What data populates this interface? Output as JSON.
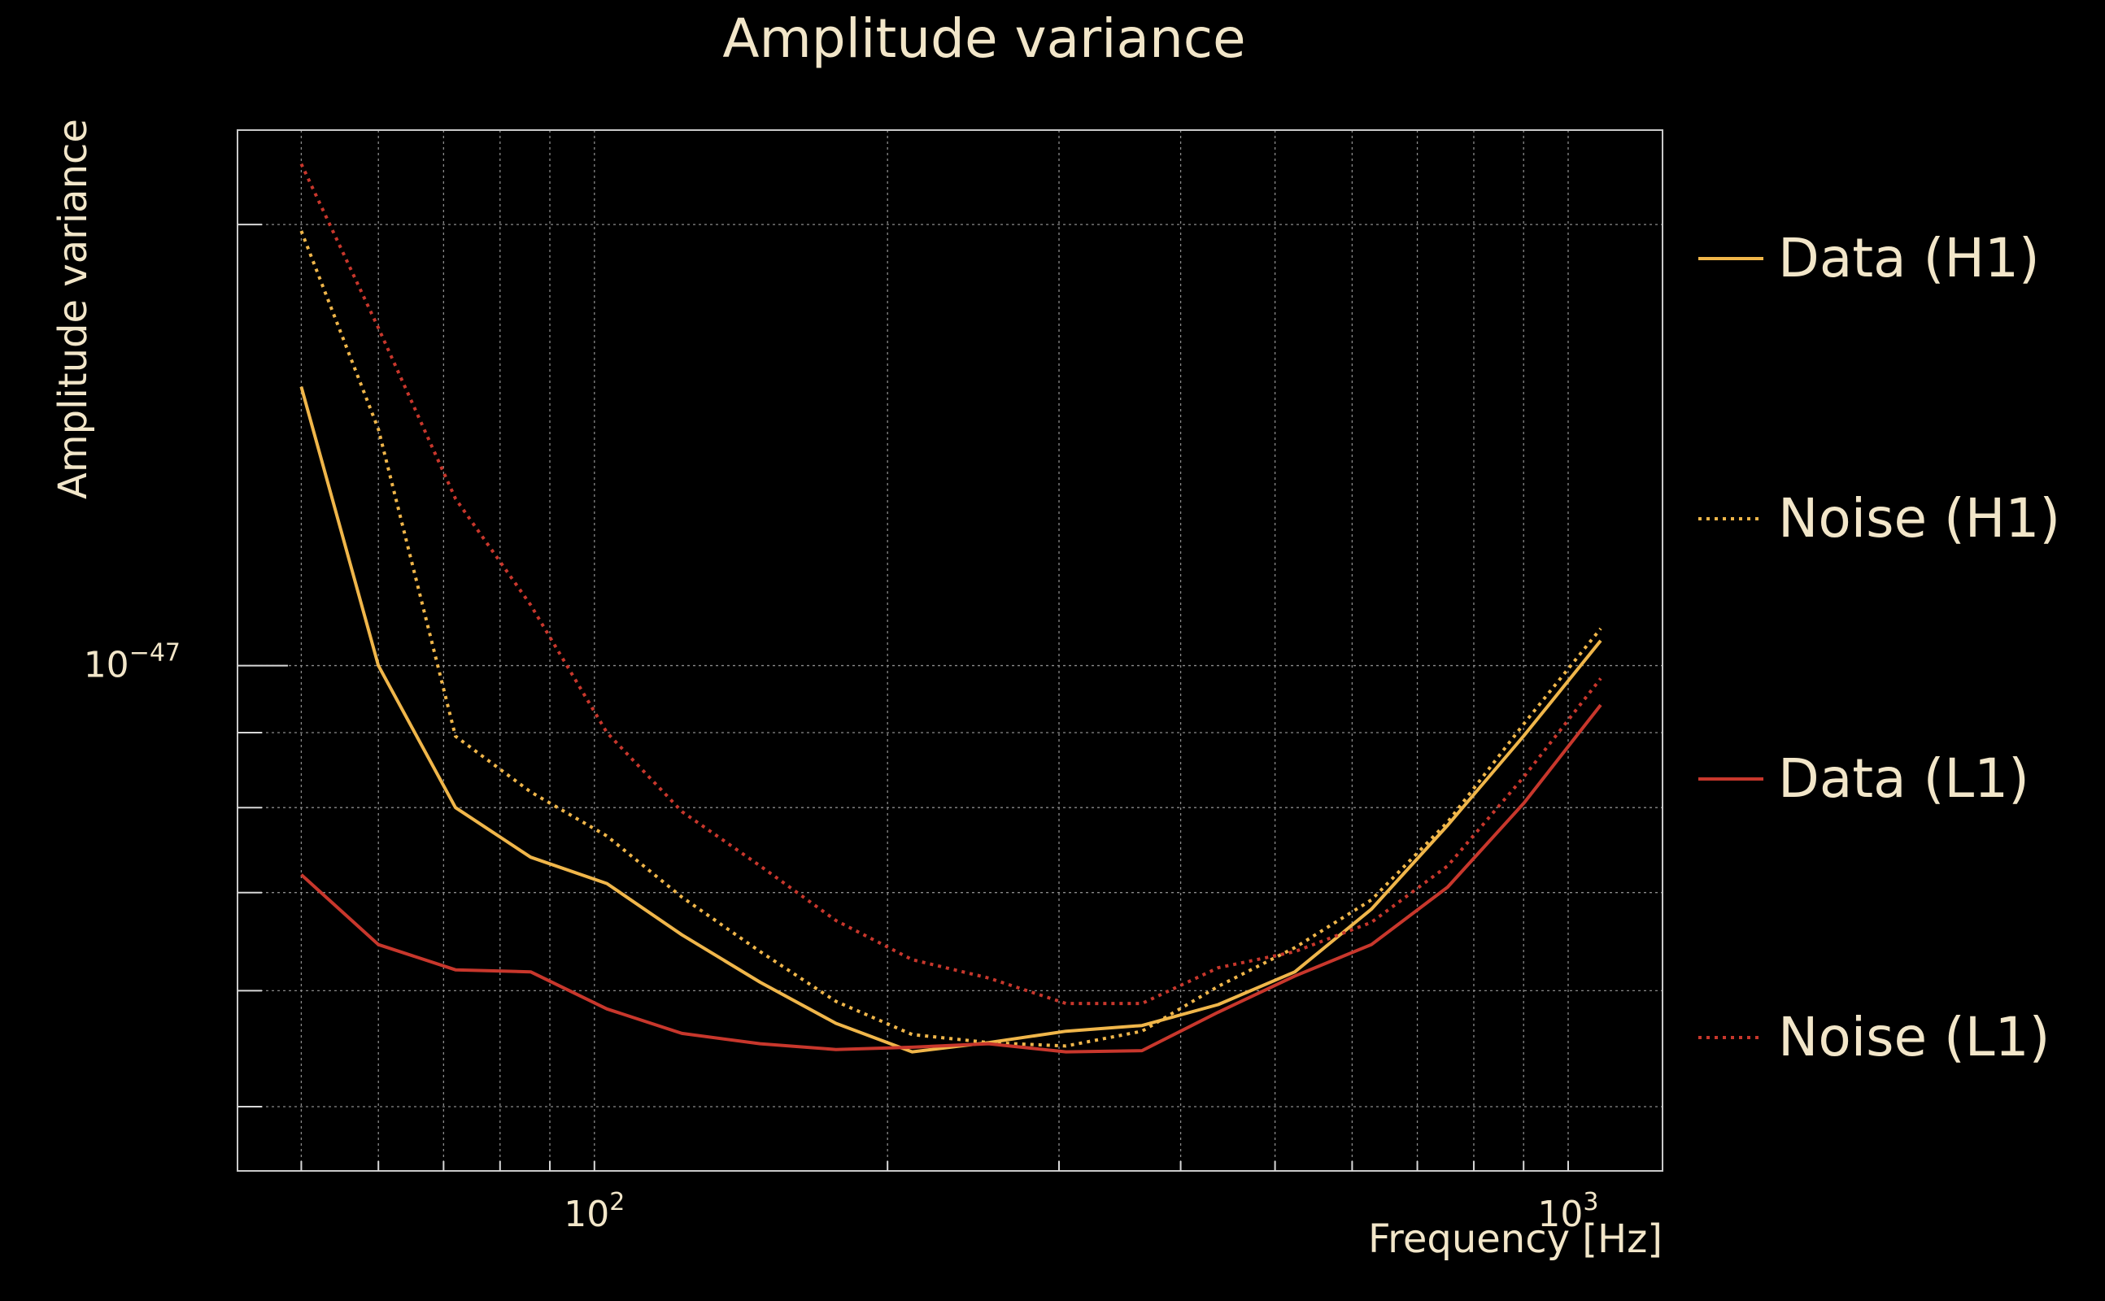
{
  "chart_data": {
    "type": "line",
    "title": "Amplitude variance",
    "xlabel": "Frequency [Hz]",
    "ylabel": "Amplitude variance",
    "xscale": "log",
    "yscale": "log",
    "xlim": [
      43,
      1250
    ],
    "ylim": [
      4.52e-48,
      2.32e-47
    ],
    "grid": true,
    "legend_position": "right",
    "x_ticks": [
      {
        "value": 100,
        "base": "10",
        "exp": "2"
      },
      {
        "value": 1000,
        "base": "10",
        "exp": "3"
      }
    ],
    "y_ticks": [
      {
        "value": 1e-47,
        "base": "10",
        "exp": "−47"
      }
    ],
    "x": [
      50,
      60,
      72,
      86,
      103,
      123,
      148,
      177,
      212,
      254,
      305,
      365,
      437,
      524,
      628,
      752,
      901,
      1080
    ],
    "series": [
      {
        "name": "Data (H1)",
        "color": "#f0b64a",
        "style": "solid",
        "values": [
          1.55e-47,
          1e-47,
          8e-48,
          7.4e-48,
          7.1e-48,
          6.55e-48,
          6.08e-48,
          5.7e-48,
          5.45e-48,
          5.53e-48,
          5.63e-48,
          5.68e-48,
          5.87e-48,
          6.18e-48,
          6.82e-48,
          7.78e-48,
          8.96e-48,
          1.04e-47
        ]
      },
      {
        "name": "Noise (H1)",
        "color": "#f0b64a",
        "style": "dotted",
        "values": [
          1.98e-47,
          1.45e-47,
          8.95e-48,
          8.2e-48,
          7.65e-48,
          6.95e-48,
          6.38e-48,
          5.9e-48,
          5.6e-48,
          5.53e-48,
          5.5e-48,
          5.63e-48,
          6.04e-48,
          6.42e-48,
          6.92e-48,
          7.82e-48,
          9.13e-48,
          1.06e-47
        ]
      },
      {
        "name": "Data (L1)",
        "color": "#c8372c",
        "style": "solid",
        "values": [
          7.2e-48,
          6.45e-48,
          6.2e-48,
          6.18e-48,
          5.83e-48,
          5.61e-48,
          5.52e-48,
          5.47e-48,
          5.49e-48,
          5.52e-48,
          5.45e-48,
          5.46e-48,
          5.8e-48,
          6.14e-48,
          6.45e-48,
          7.06e-48,
          8.06e-48,
          9.4e-48
        ]
      },
      {
        "name": "Noise (L1)",
        "color": "#c8372c",
        "style": "dotted",
        "values": [
          2.2e-47,
          1.7e-47,
          1.3e-47,
          1.1e-47,
          9e-48,
          7.95e-48,
          7.3e-48,
          6.7e-48,
          6.3e-48,
          6.12e-48,
          5.88e-48,
          5.88e-48,
          6.22e-48,
          6.38e-48,
          6.68e-48,
          7.3e-48,
          8.4e-48,
          9.8e-48
        ]
      }
    ]
  }
}
